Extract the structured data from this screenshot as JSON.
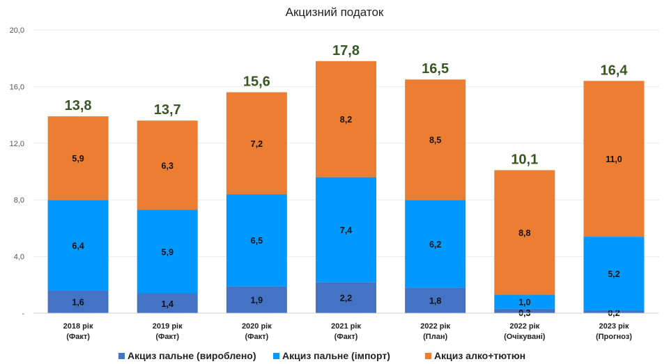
{
  "chart_data": {
    "type": "bar",
    "stacked": true,
    "title": "Акцизний податок",
    "xlabel": "",
    "ylabel": "",
    "ylim": [
      0,
      20
    ],
    "yticks": [
      0,
      4,
      8,
      12,
      16,
      20
    ],
    "ytick_labels": [
      "-",
      "4,0",
      "8,0",
      "12,0",
      "16,0",
      "20,0"
    ],
    "grid": true,
    "legend_position": "bottom",
    "categories": [
      [
        "2018 рік",
        "(Факт)"
      ],
      [
        "2019 рік",
        "(Факт)"
      ],
      [
        "2020 рік",
        "(Факт)"
      ],
      [
        "2021 рік",
        "(Факт)"
      ],
      [
        "2022 рік",
        "(План)"
      ],
      [
        "2022 рік",
        "(Очікувані)"
      ],
      [
        "2023 рік",
        "(Прогноз)"
      ]
    ],
    "series": [
      {
        "name": "Акциз пальне (вироблено)",
        "color": "#4472C4",
        "values": [
          1.6,
          1.4,
          1.9,
          2.2,
          1.8,
          0.3,
          0.2
        ],
        "labels": [
          "1,6",
          "1,4",
          "1,9",
          "2,2",
          "1,8",
          "0,3",
          "0,2"
        ]
      },
      {
        "name": "Акциз пальне (імпорт)",
        "color": "#0099FF",
        "values": [
          6.4,
          5.9,
          6.5,
          7.4,
          6.2,
          1.0,
          5.2
        ],
        "labels": [
          "6,4",
          "5,9",
          "6,5",
          "7,4",
          "6,2",
          "1,0",
          "5,2"
        ]
      },
      {
        "name": "Акциз алко+тютюн",
        "color": "#ED7D31",
        "values": [
          5.9,
          6.3,
          7.2,
          8.2,
          8.5,
          8.8,
          11.0
        ],
        "labels": [
          "5,9",
          "6,3",
          "7,2",
          "8,2",
          "8,5",
          "8,8",
          "11,0"
        ]
      }
    ],
    "totals": [
      13.8,
      13.7,
      15.6,
      17.8,
      16.5,
      10.1,
      16.4
    ],
    "total_labels": [
      "13,8",
      "13,7",
      "15,6",
      "17,8",
      "16,5",
      "10,1",
      "16,4"
    ],
    "total_label_color": "#375623"
  }
}
